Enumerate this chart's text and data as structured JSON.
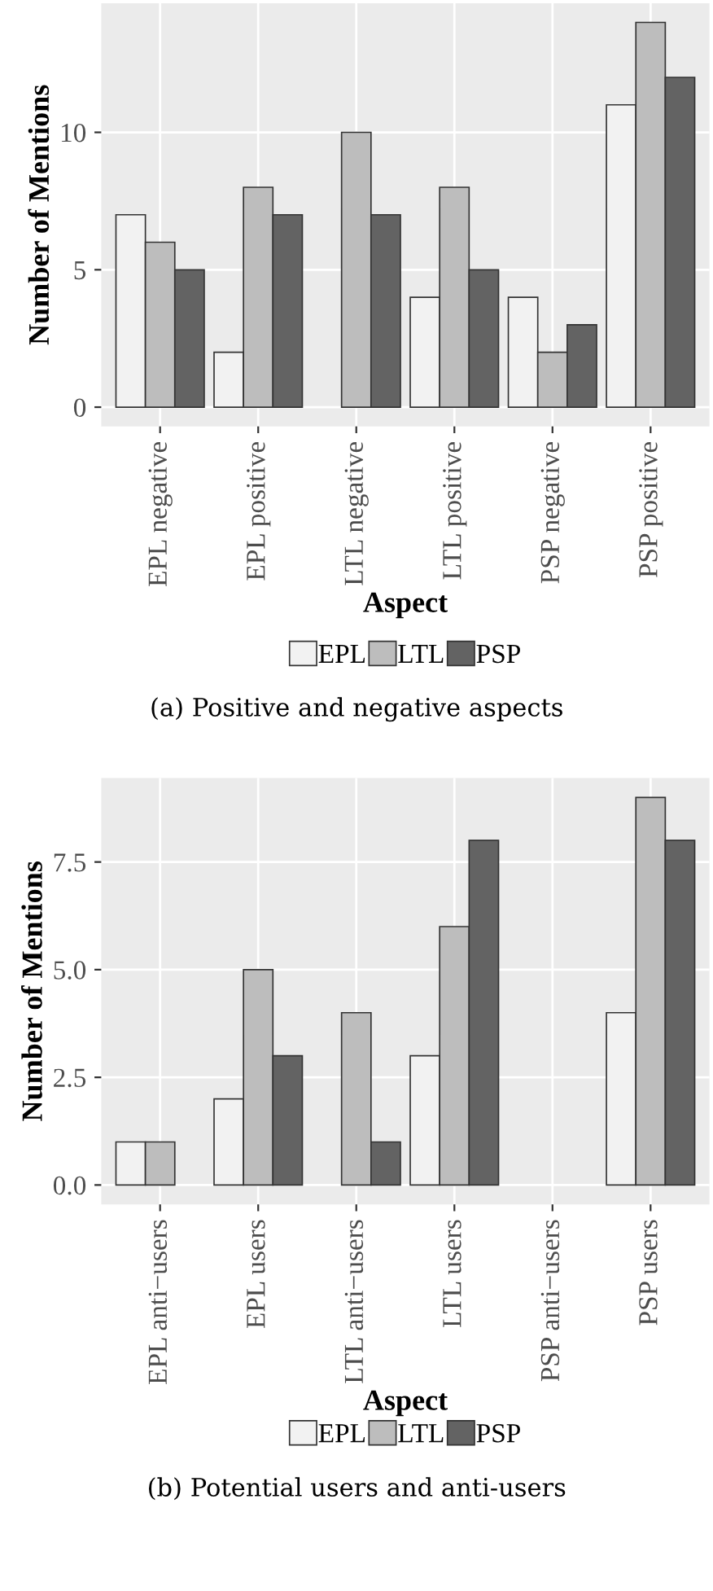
{
  "chart_data": [
    {
      "type": "bar",
      "xlabel": "Aspect",
      "ylabel": "Number of Mentions",
      "categories": [
        "EPL negative",
        "EPL positive",
        "LTL negative",
        "LTL positive",
        "PSP negative",
        "PSP positive"
      ],
      "series": [
        {
          "name": "EPL",
          "color": "#f2f2f2",
          "values": [
            7,
            2,
            0,
            4,
            4,
            11
          ]
        },
        {
          "name": "LTL",
          "color": "#bdbdbd",
          "values": [
            6,
            8,
            10,
            8,
            2,
            14
          ]
        },
        {
          "name": "PSP",
          "color": "#636363",
          "values": [
            5,
            7,
            7,
            5,
            3,
            12
          ]
        }
      ],
      "ylim": [
        -0.7,
        14.7
      ],
      "yticks": [
        0,
        5,
        10
      ],
      "grid": true,
      "legend": "bottom",
      "annotations": [
        "(a) Positive and negative aspects"
      ]
    },
    {
      "type": "bar",
      "xlabel": "Aspect",
      "ylabel": "Number of Mentions",
      "categories": [
        "EPL anti−users",
        "EPL users",
        "LTL anti−users",
        "LTL users",
        "PSP anti−users",
        "PSP users"
      ],
      "series": [
        {
          "name": "EPL",
          "color": "#f2f2f2",
          "values": [
            1,
            2,
            0,
            3,
            0,
            4
          ]
        },
        {
          "name": "LTL",
          "color": "#bdbdbd",
          "values": [
            1,
            5,
            4,
            6,
            0,
            9
          ]
        },
        {
          "name": "PSP",
          "color": "#636363",
          "values": [
            0,
            3,
            1,
            8,
            0,
            8
          ]
        }
      ],
      "ylim": [
        -0.45,
        9.45
      ],
      "yticks": [
        {
          "value": 0,
          "label": "0.0"
        },
        {
          "value": 2.5,
          "label": "2.5"
        },
        {
          "value": 5,
          "label": "5.0"
        },
        {
          "value": 7.5,
          "label": "7.5"
        }
      ],
      "grid": true,
      "legend": "bottom",
      "annotations": [
        "(b) Potential users and anti-users"
      ]
    }
  ]
}
